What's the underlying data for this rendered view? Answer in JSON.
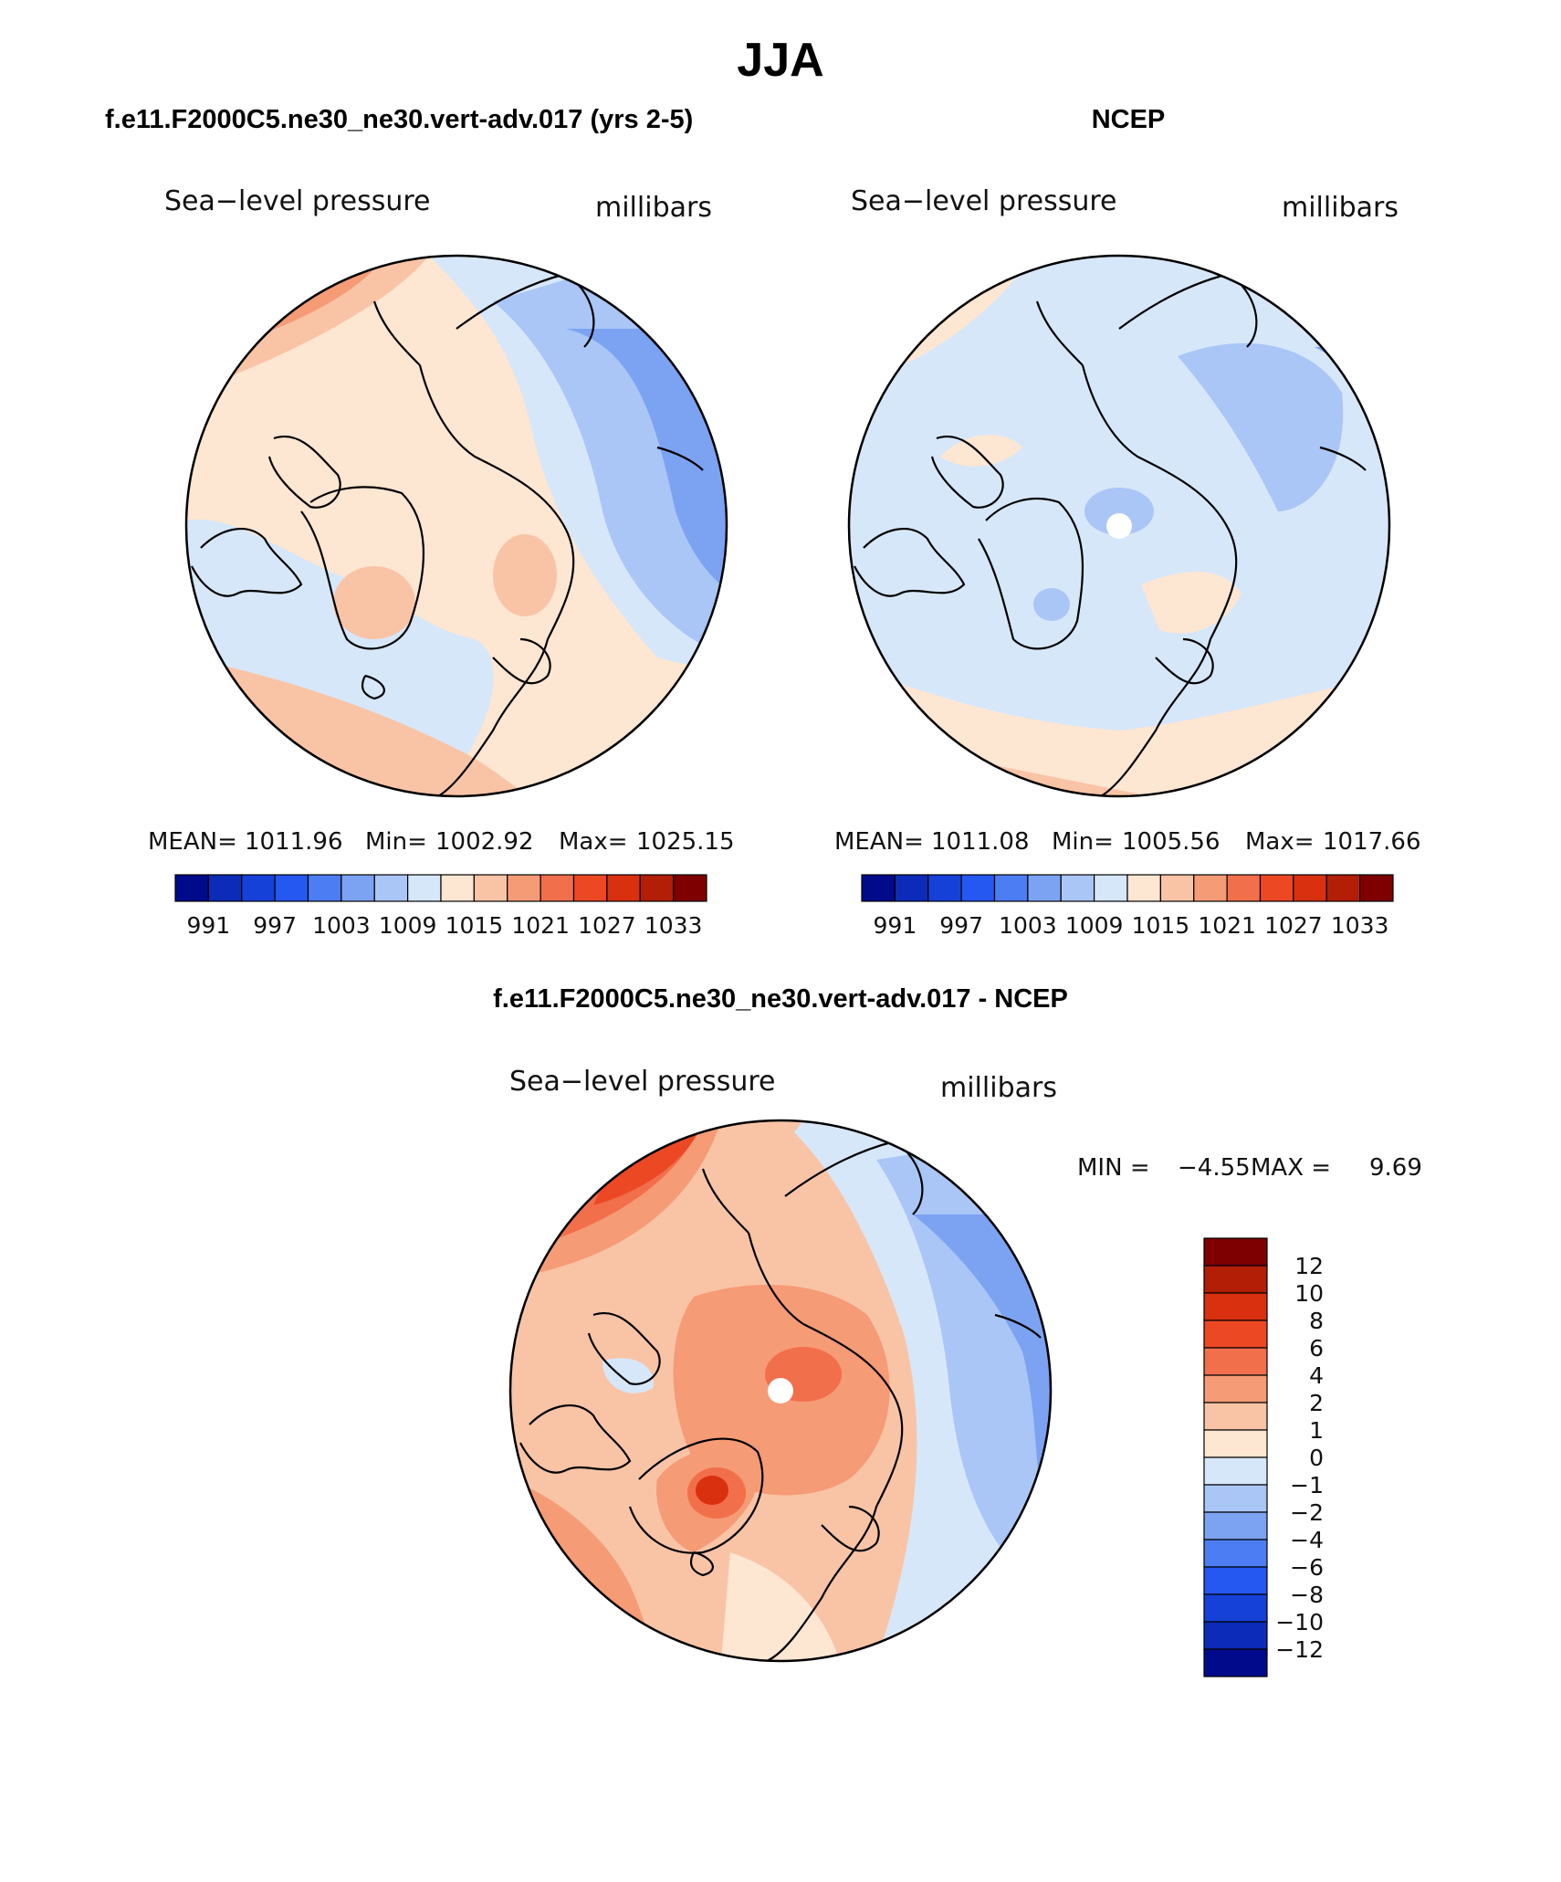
{
  "title": "JJA",
  "chart_data": [
    {
      "type": "contour-map",
      "title": "f.e11.F2000C5.ne30_ne30.vert-adv.017 (yrs 2-5)",
      "left_label": "Sea−level pressure",
      "right_label": "millibars",
      "stats": {
        "mean_label": "MEAN=",
        "mean": "1011.96",
        "min_label": "Min=",
        "min": "1002.92",
        "max_label": "Max=",
        "max": "1025.15"
      },
      "colorbar": {
        "tick_labels": [
          "991",
          "997",
          "1003",
          "1009",
          "1015",
          "1021",
          "1027",
          "1033"
        ],
        "colors": [
          "#000a8a",
          "#0b2bb8",
          "#1641d8",
          "#2558f0",
          "#4c7df2",
          "#7ca2f2",
          "#aac6f6",
          "#d7e7fa",
          "#fde6d2",
          "#f9c4a6",
          "#f59b75",
          "#f26f4b",
          "#ec4824",
          "#d9310f",
          "#b21e06",
          "#7f0000"
        ]
      }
    },
    {
      "type": "contour-map",
      "title": "NCEP",
      "left_label": "Sea−level pressure",
      "right_label": "millibars",
      "stats": {
        "mean_label": "MEAN=",
        "mean": "1011.08",
        "min_label": "Min=",
        "min": "1005.56",
        "max_label": "Max=",
        "max": "1017.66"
      },
      "colorbar": {
        "tick_labels": [
          "991",
          "997",
          "1003",
          "1009",
          "1015",
          "1021",
          "1027",
          "1033"
        ],
        "colors": [
          "#000a8a",
          "#0b2bb8",
          "#1641d8",
          "#2558f0",
          "#4c7df2",
          "#7ca2f2",
          "#aac6f6",
          "#d7e7fa",
          "#fde6d2",
          "#f9c4a6",
          "#f59b75",
          "#f26f4b",
          "#ec4824",
          "#d9310f",
          "#b21e06",
          "#7f0000"
        ]
      }
    },
    {
      "type": "contour-map",
      "title": "f.e11.F2000C5.ne30_ne30.vert-adv.017 - NCEP",
      "left_label": "Sea−level pressure",
      "right_label": "millibars",
      "stats": {
        "min_label": "MIN =",
        "min": "−4.55",
        "max_label": "MAX =",
        "max": "9.69"
      },
      "colorbar": {
        "orientation": "vertical",
        "tick_labels": [
          "12",
          "10",
          "8",
          "6",
          "4",
          "2",
          "1",
          "0",
          "−1",
          "−2",
          "−4",
          "−6",
          "−8",
          "−10",
          "−12"
        ],
        "colors": [
          "#7f0000",
          "#b21e06",
          "#d9310f",
          "#ec4824",
          "#f26f4b",
          "#f59b75",
          "#f9c4a6",
          "#fde6d2",
          "#d7e7fa",
          "#aac6f6",
          "#7ca2f2",
          "#4c7df2",
          "#2558f0",
          "#1641d8",
          "#0b2bb8",
          "#000a8a"
        ]
      }
    }
  ]
}
